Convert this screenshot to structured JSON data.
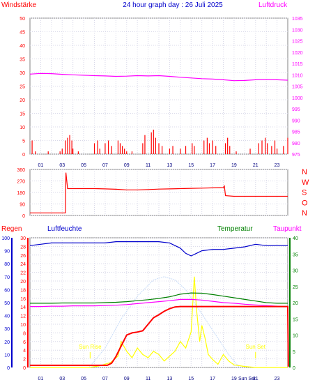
{
  "title": "24 hour graph day : 26 Juli 2025",
  "labels": {
    "windstaerke": "Windstärke",
    "luftdruck": "Luftdruck",
    "regen": "Regen",
    "luftfeuchte": "Luftfeuchte",
    "temperatur": "Temperatur",
    "taupunkt": "Taupunkt",
    "sun_rise": "Sun Rise",
    "sun_set": "Sun Set",
    "sun_set_axis": "Sun Set"
  },
  "colors": {
    "wind": "#ff0000",
    "pressure": "#ff00ff",
    "rain": "#ff0000",
    "humidity": "#0000cc",
    "temperature": "#008000",
    "dewpoint": "#ff00ff",
    "solar": "#ffff00",
    "uv": "#c8dcf8",
    "grid": "#d8d8e8",
    "axis_blue": "#0000cc"
  },
  "chart_data": [
    {
      "type": "bar",
      "title": "24 hour graph day : 26 Juli 2025",
      "x_ticks": [
        "01",
        "03",
        "05",
        "07",
        "09",
        "11",
        "13",
        "15",
        "17",
        "19",
        "21",
        "23"
      ],
      "y_left": {
        "label": "Windstärke",
        "ticks": [
          0,
          5,
          10,
          15,
          20,
          25,
          30,
          35,
          40,
          45,
          50
        ],
        "range": [
          0,
          50
        ]
      },
      "y_right": {
        "label": "Luftdruck",
        "ticks": [
          975,
          980,
          985,
          990,
          995,
          1000,
          1005,
          1010,
          1015,
          1020,
          1025,
          1030,
          1035
        ],
        "range": [
          975,
          1035
        ]
      },
      "series": [
        {
          "name": "Luftdruck",
          "type": "line",
          "x": [
            0,
            1,
            2,
            3,
            4,
            5,
            6,
            7,
            8,
            9,
            10,
            11,
            12,
            13,
            14,
            15,
            16,
            17,
            18,
            19,
            20,
            21,
            22,
            23,
            24
          ],
          "values": [
            1010.3,
            1010.6,
            1010.5,
            1010.2,
            1010.0,
            1009.8,
            1009.6,
            1009.5,
            1009.3,
            1009.4,
            1009.6,
            1009.5,
            1009.6,
            1009.3,
            1008.9,
            1008.6,
            1008.3,
            1008.1,
            1007.8,
            1007.4,
            1007.5,
            1007.8,
            1007.9,
            1007.8,
            1007.6
          ]
        }
      ]
    },
    {
      "type": "line",
      "y_left": {
        "ticks": [
          0,
          90,
          180,
          270,
          360
        ],
        "range": [
          0,
          360
        ]
      },
      "y_right": {
        "ticks": [
          "N",
          "W",
          "S",
          "O",
          "N"
        ]
      },
      "series": [
        {
          "name": "Windrichtung",
          "x": [
            0,
            3.3,
            3.35,
            3.5,
            4,
            6,
            7,
            8,
            9,
            10,
            11,
            12,
            13,
            14,
            15,
            16,
            17,
            18,
            18.1,
            18.2,
            19,
            20,
            21,
            22,
            23,
            24
          ],
          "values": [
            20,
            20,
            335,
            210,
            210,
            210,
            208,
            205,
            200,
            200,
            203,
            206,
            208,
            210,
            212,
            214,
            216,
            218,
            230,
            155,
            150,
            150,
            150,
            150,
            150,
            150
          ]
        }
      ]
    },
    {
      "type": "line",
      "x_ticks": [
        "01",
        "03",
        "05",
        "07",
        "09",
        "11",
        "13",
        "15",
        "17",
        "19",
        "21",
        "23"
      ],
      "y_axes": [
        {
          "label": "Regen",
          "ticks": [
            0,
            2,
            4,
            6,
            8,
            10,
            12,
            14,
            16,
            18,
            20,
            22,
            24,
            26,
            28,
            30
          ]
        },
        {
          "label": "Luftfeuchte",
          "ticks": [
            0,
            10,
            20,
            30,
            40,
            50,
            60,
            70,
            80,
            90,
            100
          ]
        },
        {
          "label": "Temperatur",
          "ticks": [
            0,
            5,
            10,
            15,
            20,
            25,
            30,
            35,
            40
          ]
        }
      ],
      "series": [
        {
          "name": "Luftfeuchte",
          "x": [
            0,
            1,
            2,
            3,
            4,
            5,
            6,
            7,
            8,
            9,
            10,
            11,
            12,
            13,
            14,
            14.5,
            15,
            15.5,
            16,
            17,
            18,
            19,
            20,
            21,
            22,
            23,
            24
          ],
          "values": [
            94,
            95,
            96,
            96,
            96,
            96,
            96,
            96,
            97,
            97,
            97,
            97,
            97,
            96,
            92,
            88,
            86,
            88,
            90,
            91,
            91,
            92,
            93,
            95,
            94,
            94,
            94
          ]
        },
        {
          "name": "Temperatur",
          "x": [
            0,
            1,
            2,
            3,
            4,
            5,
            6,
            7,
            8,
            9,
            10,
            11,
            12,
            13,
            14,
            15,
            16,
            17,
            18,
            19,
            20,
            21,
            22,
            23,
            24
          ],
          "values": [
            19.8,
            19.8,
            19.8,
            19.9,
            19.9,
            19.9,
            19.9,
            20.0,
            20.1,
            20.3,
            20.6,
            20.9,
            21.3,
            21.8,
            22.6,
            23.0,
            22.9,
            22.5,
            22.0,
            21.5,
            21.0,
            20.5,
            20.0,
            19.8,
            19.8
          ]
        },
        {
          "name": "Taupunkt",
          "x": [
            0,
            1,
            2,
            3,
            4,
            5,
            6,
            7,
            8,
            9,
            10,
            11,
            12,
            13,
            14,
            15,
            16,
            17,
            18,
            19,
            20,
            21,
            22,
            23,
            24
          ],
          "values": [
            18.8,
            18.8,
            18.9,
            18.9,
            19.0,
            19.0,
            19.0,
            19.1,
            19.2,
            19.4,
            19.7,
            20.0,
            20.3,
            20.6,
            21.0,
            21.0,
            20.8,
            20.4,
            20.0,
            19.8,
            19.5,
            19.3,
            19.1,
            18.9,
            18.8
          ]
        },
        {
          "name": "Regen",
          "x": [
            0,
            7.2,
            7.6,
            8.0,
            8.5,
            9.0,
            9.5,
            10.0,
            10.5,
            11.0,
            11.5,
            12.0,
            12.5,
            13.0,
            13.5,
            14.0,
            16.0,
            20.0,
            22.0,
            24.0,
            24.05
          ],
          "values": [
            0.5,
            0.5,
            1.0,
            2.5,
            5.0,
            7.5,
            8.0,
            8.2,
            8.5,
            10.0,
            11.5,
            12.2,
            13.0,
            13.6,
            14.0,
            14.1,
            14.1,
            14.1,
            14.1,
            14.1,
            0.2
          ]
        },
        {
          "name": "Solar",
          "x": [
            0,
            5.5,
            6.5,
            7.5,
            8.2,
            8.5,
            9.0,
            9.5,
            10.0,
            10.5,
            11.0,
            11.5,
            12.0,
            12.5,
            13.0,
            13.5,
            14.0,
            14.5,
            15.0,
            15.3,
            15.5,
            15.8,
            16.0,
            16.3,
            16.6,
            17.0,
            17.5,
            18.0,
            18.5,
            19.0,
            20.0,
            21.0,
            24.0
          ],
          "values": [
            0,
            0,
            0.5,
            1.5,
            3.5,
            8.0,
            5.0,
            3.0,
            6.0,
            4.0,
            3.0,
            5.0,
            4.0,
            2.0,
            3.5,
            5.0,
            8.0,
            6.0,
            11.0,
            28.0,
            18.0,
            8.0,
            13.0,
            9.0,
            4.0,
            2.5,
            1.0,
            4.0,
            2.0,
            0.8,
            0.3,
            0,
            0
          ]
        },
        {
          "name": "UV",
          "x": [
            5.5,
            7,
            8.5,
            10,
            11.5,
            12.5,
            13.5,
            14.5,
            15.5,
            16.5,
            17.5,
            18.5,
            19.5
          ],
          "values": [
            0,
            6,
            15,
            22,
            27,
            28,
            27,
            24,
            19,
            14,
            9,
            4,
            0
          ]
        }
      ]
    }
  ]
}
